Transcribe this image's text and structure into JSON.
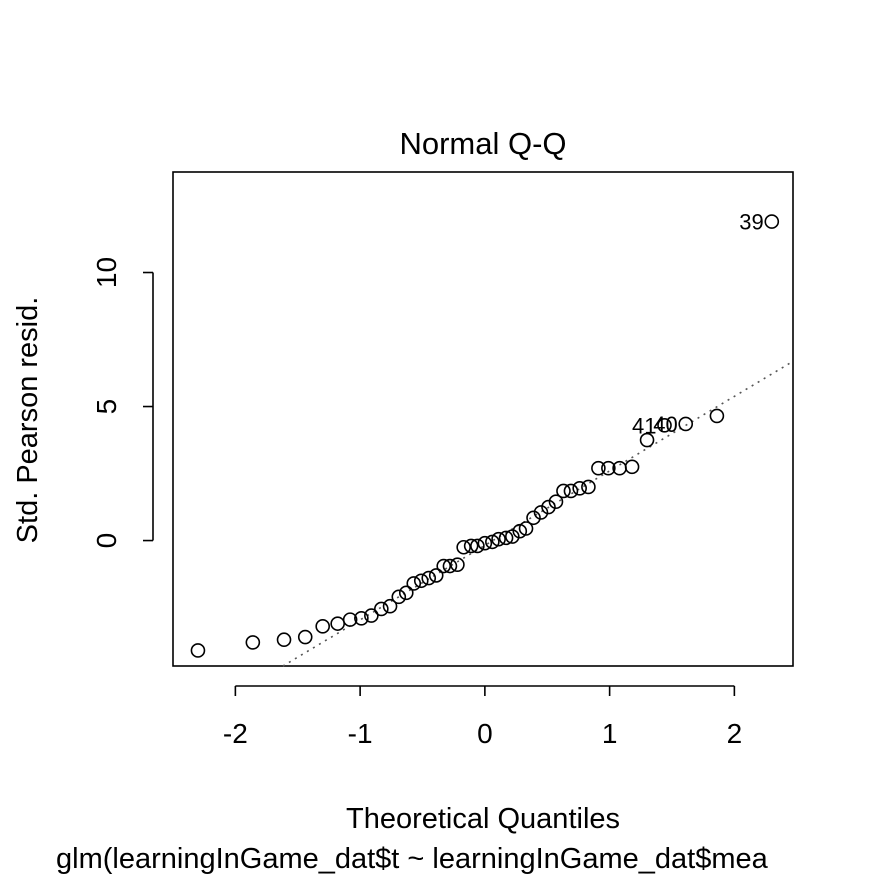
{
  "chart_data": {
    "type": "scatter",
    "title": "Normal Q-Q",
    "xlabel": "Theoretical Quantiles",
    "ylabel": "Std. Pearson resid.",
    "subtitle": "glm(learningInGame_dat$t ~ learningInGame_dat$mea",
    "xlim": [
      -2.5,
      2.47
    ],
    "ylim": [
      -4.68,
      13.75
    ],
    "x_ticks": [
      -2,
      -1,
      0,
      1,
      2
    ],
    "x_tick_labels": [
      "-2",
      "-1",
      "0",
      "1",
      "2"
    ],
    "y_ticks": [
      0,
      5,
      10
    ],
    "y_tick_labels": [
      "0",
      "5",
      "10"
    ],
    "grid": false,
    "legend": "none",
    "reference_line": {
      "slope": 2.78,
      "intercept": -0.18,
      "style": "dotted",
      "color": "#555555"
    },
    "points": [
      {
        "x": -2.3,
        "y": -4.1
      },
      {
        "x": -1.86,
        "y": -3.8
      },
      {
        "x": -1.61,
        "y": -3.7
      },
      {
        "x": -1.44,
        "y": -3.6
      },
      {
        "x": -1.3,
        "y": -3.2
      },
      {
        "x": -1.18,
        "y": -3.1
      },
      {
        "x": -1.08,
        "y": -2.95
      },
      {
        "x": -0.99,
        "y": -2.9
      },
      {
        "x": -0.91,
        "y": -2.8
      },
      {
        "x": -0.83,
        "y": -2.55
      },
      {
        "x": -0.76,
        "y": -2.45
      },
      {
        "x": -0.69,
        "y": -2.1
      },
      {
        "x": -0.63,
        "y": -1.95
      },
      {
        "x": -0.57,
        "y": -1.6
      },
      {
        "x": -0.51,
        "y": -1.5
      },
      {
        "x": -0.45,
        "y": -1.4
      },
      {
        "x": -0.39,
        "y": -1.3
      },
      {
        "x": -0.33,
        "y": -0.95
      },
      {
        "x": -0.28,
        "y": -0.95
      },
      {
        "x": -0.22,
        "y": -0.9
      },
      {
        "x": -0.17,
        "y": -0.25
      },
      {
        "x": -0.11,
        "y": -0.2
      },
      {
        "x": -0.06,
        "y": -0.2
      },
      {
        "x": 0.0,
        "y": -0.1
      },
      {
        "x": 0.06,
        "y": -0.05
      },
      {
        "x": 0.11,
        "y": 0.05
      },
      {
        "x": 0.17,
        "y": 0.1
      },
      {
        "x": 0.22,
        "y": 0.15
      },
      {
        "x": 0.28,
        "y": 0.35
      },
      {
        "x": 0.33,
        "y": 0.45
      },
      {
        "x": 0.39,
        "y": 0.85
      },
      {
        "x": 0.45,
        "y": 1.05
      },
      {
        "x": 0.51,
        "y": 1.25
      },
      {
        "x": 0.57,
        "y": 1.45
      },
      {
        "x": 0.63,
        "y": 1.85
      },
      {
        "x": 0.69,
        "y": 1.85
      },
      {
        "x": 0.76,
        "y": 1.95
      },
      {
        "x": 0.83,
        "y": 2.0
      },
      {
        "x": 0.91,
        "y": 2.7
      },
      {
        "x": 0.99,
        "y": 2.7
      },
      {
        "x": 1.08,
        "y": 2.7
      },
      {
        "x": 1.18,
        "y": 2.75
      },
      {
        "x": 1.3,
        "y": 3.75
      },
      {
        "x": 1.44,
        "y": 4.3,
        "label": "41"
      },
      {
        "x": 1.61,
        "y": 4.35,
        "label": "40"
      },
      {
        "x": 1.86,
        "y": 4.65
      },
      {
        "x": 2.3,
        "y": 11.9,
        "label": "39"
      }
    ]
  }
}
